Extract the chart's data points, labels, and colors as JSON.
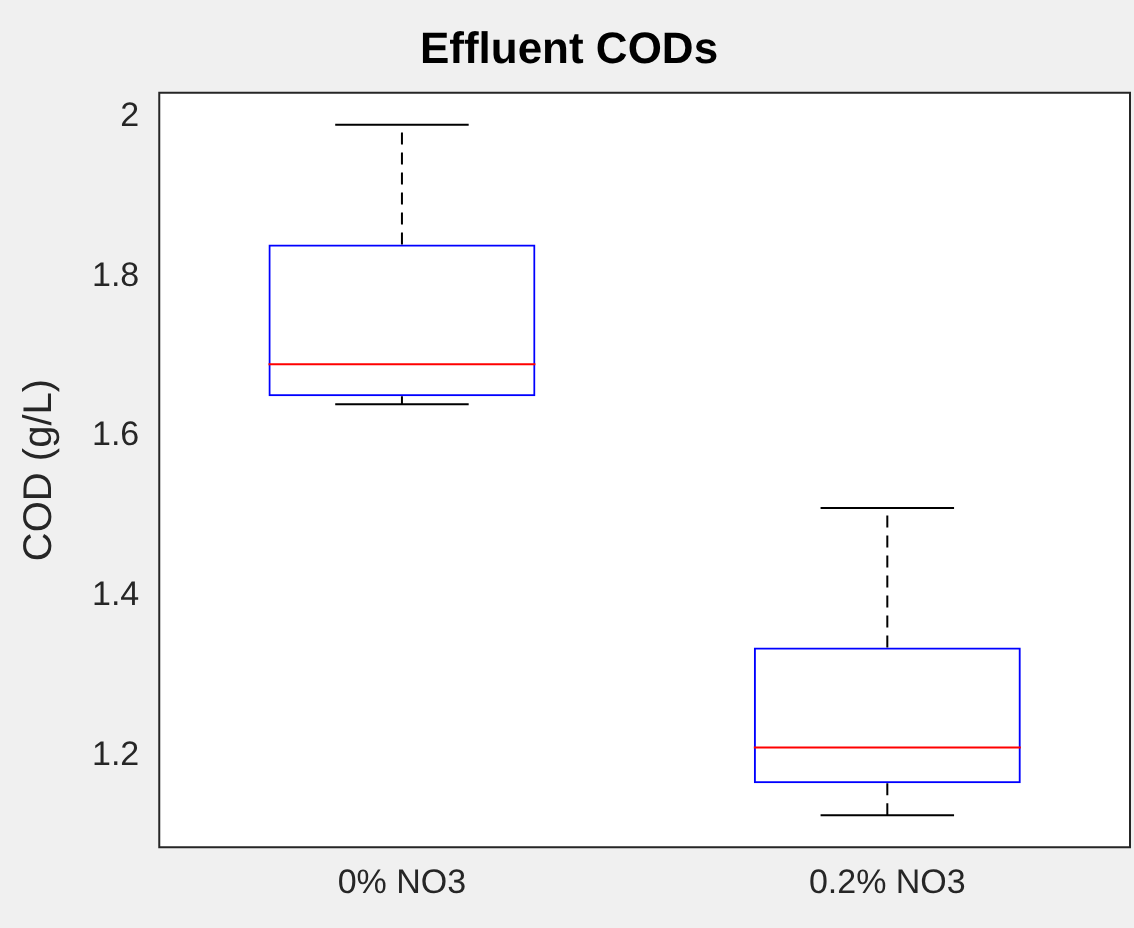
{
  "chart_data": {
    "type": "box",
    "title": "Effluent CODs",
    "ylabel": "COD (g/L)",
    "categories": [
      "0% NO3",
      "0.2% NO3"
    ],
    "boxes": [
      {
        "low": 1.64,
        "q1": 1.65,
        "median": 1.69,
        "q3": 1.84,
        "high": 1.99
      },
      {
        "low": 1.125,
        "q1": 1.165,
        "median": 1.21,
        "q3": 1.335,
        "high": 1.51
      }
    ],
    "color": "#0000ff",
    "ylim": [
      1.085,
      2.03
    ],
    "yticks": [
      1.2,
      1.4,
      1.6,
      1.8,
      2
    ],
    "grid": false
  }
}
